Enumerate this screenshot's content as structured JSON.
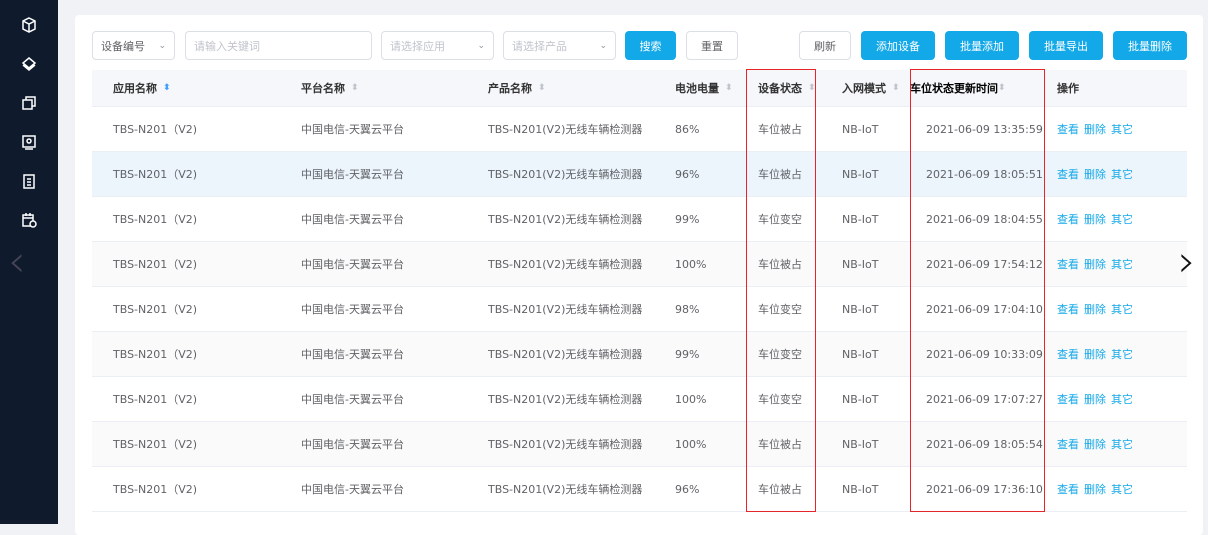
{
  "sidebar": {
    "icons": [
      "cube-icon",
      "layers-icon",
      "copy-icon",
      "monitor-icon",
      "clipboard-icon",
      "calendar-clock-icon"
    ]
  },
  "filters": {
    "field_select": "设备编号",
    "keyword_placeholder": "请输入关键词",
    "app_placeholder": "请选择应用",
    "product_placeholder": "请选择产品"
  },
  "toolbar": {
    "search": "搜索",
    "reset": "重置",
    "refresh": "刷新",
    "add_device": "添加设备",
    "batch_add": "批量添加",
    "batch_export": "批量导出",
    "batch_delete": "批量删除"
  },
  "colors": {
    "primary": "#13a8e8",
    "sidebar": "#0f1a2c",
    "highlight_box": "#e8242b"
  },
  "table": {
    "headers": [
      "应用名称",
      "平台名称",
      "产品名称",
      "电池电量",
      "设备状态",
      "入网模式",
      "车位状态更新时间",
      "操作"
    ],
    "actions": [
      "查看",
      "删除",
      "其它"
    ],
    "rows": [
      {
        "app": "TBS-N201（V2)",
        "platform": "中国电信-天翼云平台",
        "product": "TBS-N201(V2)无线车辆检测器",
        "battery": "86%",
        "status": "车位被占",
        "network": "NB-IoT",
        "time": "2021-06-09 13:35:59"
      },
      {
        "app": "TBS-N201（V2)",
        "platform": "中国电信-天翼云平台",
        "product": "TBS-N201(V2)无线车辆检测器",
        "battery": "96%",
        "status": "车位被占",
        "network": "NB-IoT",
        "time": "2021-06-09 18:05:51"
      },
      {
        "app": "TBS-N201（V2)",
        "platform": "中国电信-天翼云平台",
        "product": "TBS-N201(V2)无线车辆检测器",
        "battery": "99%",
        "status": "车位变空",
        "network": "NB-IoT",
        "time": "2021-06-09 18:04:55"
      },
      {
        "app": "TBS-N201（V2)",
        "platform": "中国电信-天翼云平台",
        "product": "TBS-N201(V2)无线车辆检测器",
        "battery": "100%",
        "status": "车位被占",
        "network": "NB-IoT",
        "time": "2021-06-09 17:54:12"
      },
      {
        "app": "TBS-N201（V2)",
        "platform": "中国电信-天翼云平台",
        "product": "TBS-N201(V2)无线车辆检测器",
        "battery": "98%",
        "status": "车位变空",
        "network": "NB-IoT",
        "time": "2021-06-09 17:04:10"
      },
      {
        "app": "TBS-N201（V2)",
        "platform": "中国电信-天翼云平台",
        "product": "TBS-N201(V2)无线车辆检测器",
        "battery": "99%",
        "status": "车位变空",
        "network": "NB-IoT",
        "time": "2021-06-09 10:33:09"
      },
      {
        "app": "TBS-N201（V2)",
        "platform": "中国电信-天翼云平台",
        "product": "TBS-N201(V2)无线车辆检测器",
        "battery": "100%",
        "status": "车位变空",
        "network": "NB-IoT",
        "time": "2021-06-09 17:07:27"
      },
      {
        "app": "TBS-N201（V2)",
        "platform": "中国电信-天翼云平台",
        "product": "TBS-N201(V2)无线车辆检测器",
        "battery": "100%",
        "status": "车位被占",
        "network": "NB-IoT",
        "time": "2021-06-09 18:05:54"
      },
      {
        "app": "TBS-N201（V2)",
        "platform": "中国电信-天翼云平台",
        "product": "TBS-N201(V2)无线车辆检测器",
        "battery": "96%",
        "status": "车位被占",
        "network": "NB-IoT",
        "time": "2021-06-09 17:36:10"
      }
    ]
  }
}
